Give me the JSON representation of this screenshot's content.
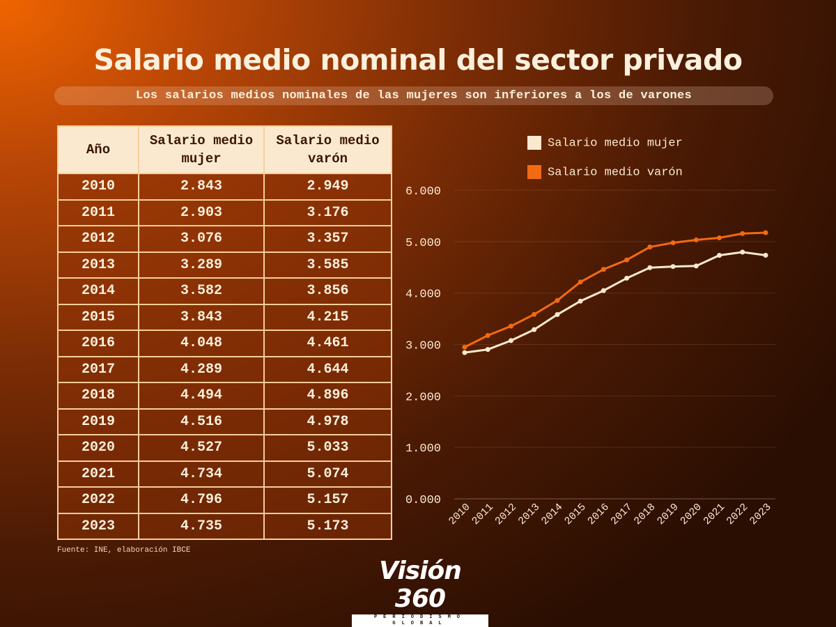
{
  "title": "Salario medio nominal del sector privado",
  "subtitle": "Los salarios medios nominales de las mujeres son inferiores a los de varones",
  "table": {
    "headers": [
      "Año",
      "Salario medio mujer",
      "Salario medio varón"
    ],
    "rows": [
      [
        "2010",
        "2.843",
        "2.949"
      ],
      [
        "2011",
        "2.903",
        "3.176"
      ],
      [
        "2012",
        "3.076",
        "3.357"
      ],
      [
        "2013",
        "3.289",
        "3.585"
      ],
      [
        "2014",
        "3.582",
        "3.856"
      ],
      [
        "2015",
        "3.843",
        "4.215"
      ],
      [
        "2016",
        "4.048",
        "4.461"
      ],
      [
        "2017",
        "4.289",
        "4.644"
      ],
      [
        "2018",
        "4.494",
        "4.896"
      ],
      [
        "2019",
        "4.516",
        "4.978"
      ],
      [
        "2020",
        "4.527",
        "5.033"
      ],
      [
        "2021",
        "4.734",
        "5.074"
      ],
      [
        "2022",
        "4.796",
        "5.157"
      ],
      [
        "2023",
        "4.735",
        "5.173"
      ]
    ]
  },
  "source": "Fuente: INE, elaboración IBCE",
  "logo": {
    "name": "Visión 360",
    "tagline": "PERIODISMO GLOBAL"
  },
  "chart_data": {
    "type": "line",
    "x": [
      "2010",
      "2011",
      "2012",
      "2013",
      "2014",
      "2015",
      "2016",
      "2017",
      "2018",
      "2019",
      "2020",
      "2021",
      "2022",
      "2023"
    ],
    "series": [
      {
        "name": "Salario medio mujer",
        "color": "#fbe9cf",
        "values": [
          2843,
          2903,
          3076,
          3289,
          3582,
          3843,
          4048,
          4289,
          4494,
          4516,
          4527,
          4734,
          4796,
          4735
        ]
      },
      {
        "name": "Salario medio varón",
        "color": "#f26a12",
        "values": [
          2949,
          3176,
          3357,
          3585,
          3856,
          4215,
          4461,
          4644,
          4896,
          4978,
          5033,
          5074,
          5157,
          5173
        ]
      }
    ],
    "yticks": [
      "0.000",
      "1.000",
      "2.000",
      "3.000",
      "4.000",
      "5.000",
      "6.000"
    ],
    "ylim": [
      0,
      6000
    ],
    "grid": true,
    "legend": "top"
  }
}
